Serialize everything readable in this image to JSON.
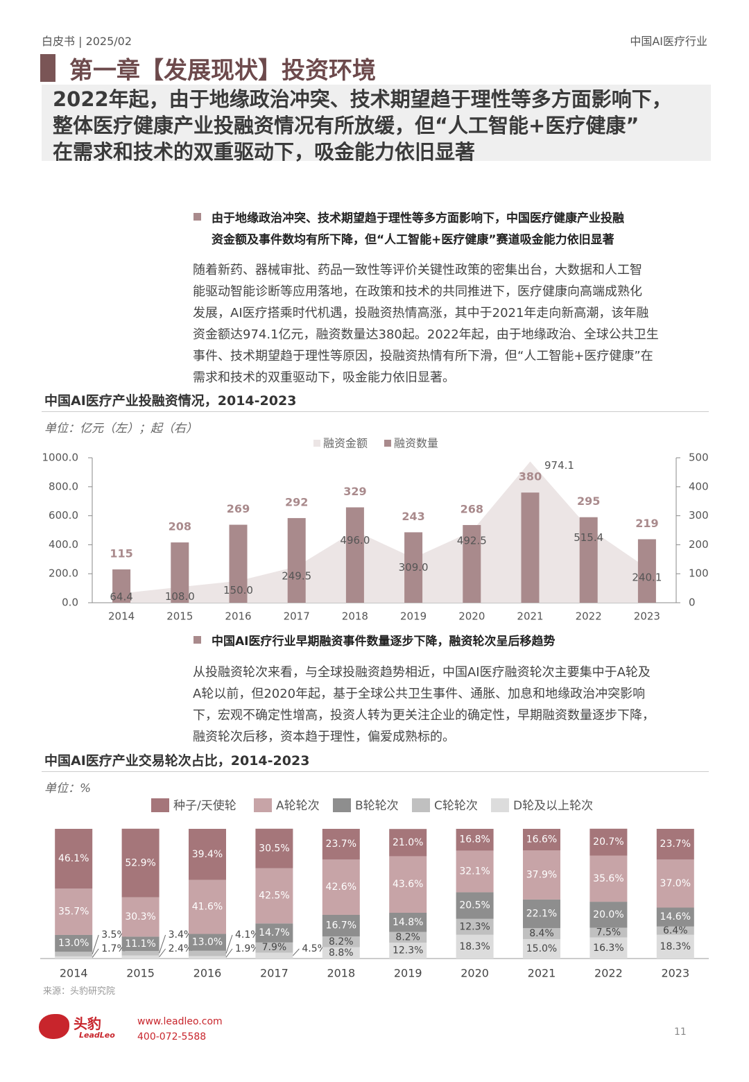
{
  "header": {
    "left": "白皮书 | 2025/02",
    "right": "中国AI医疗行业"
  },
  "chapter_title": "第一章【发展现状】投资环境",
  "headline": [
    "2022年起，由于地缘政治冲突、技术期望趋于理性等多方面影响下，",
    "整体医疗健康产业投融资情况有所放缓，但“人工智能+医疗健康”",
    "在需求和技术的双重驱动下，吸金能力依旧显著"
  ],
  "section1": {
    "bullet": [
      "由于地缘政治冲突、技术期望趋于理性等多方面影响下，中国医疗健康产业投融",
      "资金额及事件数均有所下降，但“人工智能+医疗健康”赛道吸金能力依旧显著"
    ],
    "paragraph": [
      "随着新药、器械审批、药品一致性等评价关键性政策的密集出台，大数据和人工智",
      "能驱动智能诊断等应用落地，在政策和技术的共同推进下，医疗健康向高端成熟化",
      "发展，AI医疗搭乘时代机遇，投融资热情高涨，其中于2021年走向新高潮，该年融",
      "资金额达974.1亿元，融资数量达380起。2022年起，由于地缘政治、全球公共卫生",
      "事件、技术期望趋于理性等原因，投融资热情有所下滑，但“人工智能+医疗健康”在",
      "需求和技术的双重驱动下，吸金能力依旧显著。"
    ]
  },
  "section2": {
    "bullet": [
      "中国AI医疗行业早期融资事件数量逐步下降，融资轮次呈后移趋势"
    ],
    "paragraph": [
      "从投融资轮次来看，与全球投融资趋势相近，中国AI医疗融资轮次主要集中于A轮及",
      "A轮以前，但2020年起，基于全球公共卫生事件、通胀、加息和地缘政治冲突影响",
      "下，宏观不确定性增高，投资人转为更关注企业的确定性，早期融资数量逐步下降，",
      "融资轮次后移，资本趋于理性，偏爱成熟标的。"
    ]
  },
  "chart_data": [
    {
      "type": "combo",
      "title": "中国AI医疗产业投融资情况，2014-2023",
      "subtitle": "单位：亿元（左）；起（右）",
      "categories": [
        "2014",
        "2015",
        "2016",
        "2017",
        "2018",
        "2019",
        "2020",
        "2021",
        "2022",
        "2023"
      ],
      "ylim": [
        0,
        1000
      ],
      "yticks": [
        {
          "value": 0,
          "label": "0.0"
        },
        {
          "value": 200,
          "label": "200.0"
        },
        {
          "value": 400,
          "label": "400.0"
        },
        {
          "value": 600,
          "label": "600.0"
        },
        {
          "value": 800,
          "label": "800.0"
        },
        {
          "value": 1000,
          "label": "1000.0"
        }
      ],
      "y2lim": [
        0,
        500
      ],
      "y2ticks": [
        0,
        100,
        200,
        300,
        400,
        500
      ],
      "series": [
        {
          "name": "融资金额",
          "type": "area",
          "color": "#ece5e5",
          "values": [
            64.4,
            108.0,
            150.0,
            249.5,
            496.0,
            309.0,
            492.5,
            974.1,
            515.4,
            240.1
          ],
          "value_labels": [
            "64.4",
            "108.0",
            "150.0",
            "249.5",
            "496.0",
            "309.0",
            "492.5",
            "974.1",
            "515.4",
            "240.1"
          ]
        },
        {
          "name": "融资数量",
          "type": "bar",
          "axis": "y2",
          "color": "#a98a8c",
          "values": [
            115,
            208,
            269,
            292,
            329,
            243,
            268,
            380,
            295,
            219
          ]
        }
      ]
    },
    {
      "type": "stacked",
      "title": "中国AI医疗产业交易轮次占比，2014-2023",
      "subtitle": "单位：%",
      "categories": [
        "2014",
        "2015",
        "2016",
        "2017",
        "2018",
        "2019",
        "2020",
        "2021",
        "2022",
        "2023"
      ],
      "ylim": [
        0,
        100
      ],
      "series": [
        {
          "name": "D轮及以上轮次",
          "color": "#dcdcdc",
          "values": [
            1.7,
            2.4,
            1.9,
            4.5,
            8.8,
            12.3,
            18.3,
            15.0,
            16.3,
            18.3
          ],
          "value_labels": [
            "1.7%",
            "2.4%",
            "1.9%",
            "4.5%",
            "8.8%",
            "12.3%",
            "18.3%",
            "15.0%",
            "16.3%",
            "18.3%"
          ]
        },
        {
          "name": "C轮轮次",
          "color": "#c0c0c0",
          "values": [
            3.5,
            3.4,
            4.1,
            7.9,
            8.2,
            8.2,
            12.3,
            8.4,
            7.5,
            6.4
          ],
          "value_labels": [
            "3.5%",
            "3.4%",
            "4.1%",
            "7.9%",
            "8.2%",
            "8.2%",
            "12.3%",
            "8.4%",
            "7.5%",
            "6.4%"
          ]
        },
        {
          "name": "B轮轮次",
          "color": "#8e8e8e",
          "values": [
            13.0,
            11.1,
            13.0,
            14.7,
            16.7,
            14.8,
            20.5,
            22.1,
            20.0,
            14.6
          ],
          "value_labels": [
            "13.0%",
            "11.1%",
            "13.0%",
            "14.7%",
            "16.7%",
            "14.8%",
            "20.5%",
            "22.1%",
            "20.0%",
            "14.6%"
          ]
        },
        {
          "name": "A轮轮次",
          "color": "#c7a4a7",
          "values": [
            35.7,
            30.3,
            41.6,
            42.5,
            42.6,
            43.6,
            32.1,
            37.9,
            35.6,
            37.0
          ],
          "value_labels": [
            "35.7%",
            "30.3%",
            "41.6%",
            "42.5%",
            "42.6%",
            "43.6%",
            "32.1%",
            "37.9%",
            "35.6%",
            "37.0%"
          ]
        },
        {
          "name": "种子/天使轮",
          "color": "#a5767a",
          "values": [
            46.1,
            52.9,
            39.4,
            30.5,
            23.7,
            21.0,
            16.8,
            16.6,
            20.7,
            23.7
          ],
          "value_labels": [
            "46.1%",
            "52.9%",
            "39.4%",
            "30.5%",
            "23.7%",
            "21.0%",
            "16.8%",
            "16.6%",
            "20.7%",
            "23.7%"
          ]
        }
      ]
    }
  ],
  "footer": {
    "source": "来源：头豹研究院",
    "logo_cn": "头豹",
    "logo_en": "LeadLeo",
    "website": "www.leadleo.com",
    "phone": "400-072-5588",
    "page_number": "11"
  }
}
